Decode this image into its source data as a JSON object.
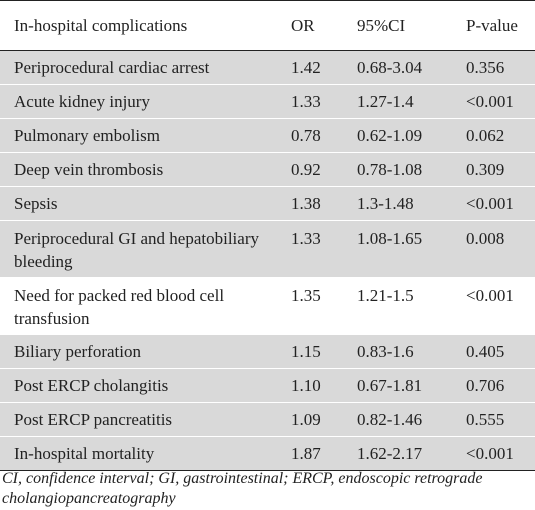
{
  "table": {
    "headers": [
      "In-hospital complications",
      "OR",
      "95%CI",
      "P-value"
    ],
    "rows": [
      [
        "Periprocedural cardiac arrest",
        "1.42",
        "0.68-3.04",
        "0.356"
      ],
      [
        "Acute kidney injury",
        "1.33",
        "1.27-1.4",
        "<0.001"
      ],
      [
        "Pulmonary embolism",
        "0.78",
        "0.62-1.09",
        "0.062"
      ],
      [
        "Deep vein thrombosis",
        "0.92",
        "0.78-1.08",
        "0.309"
      ],
      [
        "Sepsis",
        "1.38",
        "1.3-1.48",
        "<0.001"
      ],
      [
        "Periprocedural GI and hepatobiliary bleeding",
        "1.33",
        "1.08-1.65",
        "0.008"
      ],
      [
        "Need for packed red blood cell transfusion",
        "1.35",
        "1.21-1.5",
        "<0.001"
      ],
      [
        "Biliary perforation",
        "1.15",
        "0.83-1.6",
        "0.405"
      ],
      [
        "Post ERCP cholangitis",
        "1.10",
        "0.67-1.81",
        "0.706"
      ],
      [
        "Post ERCP pancreatitis",
        "1.09",
        "0.82-1.46",
        "0.555"
      ],
      [
        "In-hospital mortality",
        "1.87",
        "1.62-2.17",
        "<0.001"
      ]
    ]
  },
  "footnote": "CI, confidence interval; GI, gastrointestinal; ERCP, endoscopic retrograde cholangiopancreatography"
}
